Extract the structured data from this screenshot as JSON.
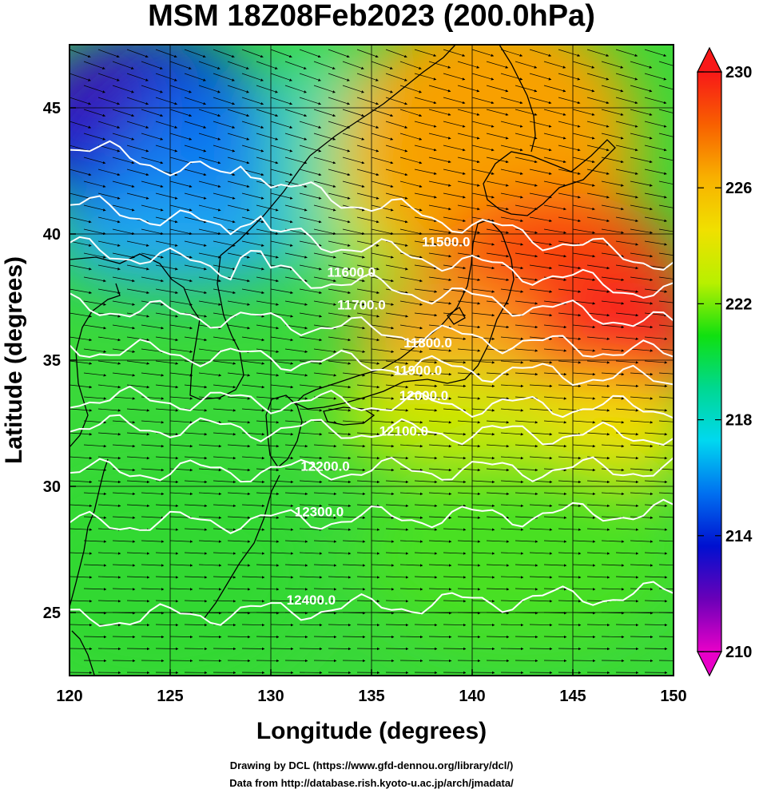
{
  "title": "MSM 18Z08Feb2023 (200.0hPa)",
  "xlabel": "Longitude (degrees)",
  "ylabel": "Latitude  (degrees)",
  "credit_line1": "Drawing by DCL (https://www.gfd-dennou.org/library/dcl/)",
  "credit_line2": "Data from http://database.rish.kyoto-u.ac.jp/arch/jmadata/",
  "colorbar": {
    "min": 210,
    "max": 230,
    "ticks": [
      "230",
      "226",
      "222",
      "218",
      "214",
      "210"
    ],
    "tick_values": [
      230,
      226,
      222,
      218,
      214,
      210
    ],
    "colors": [
      "#e800c8",
      "#6a00b8",
      "#0010d0",
      "#0070f0",
      "#00d8f0",
      "#00d890",
      "#10e010",
      "#b8f000",
      "#f0e000",
      "#f8b000",
      "#f86000",
      "#f81818"
    ]
  },
  "chart_data": {
    "type": "heatmap",
    "variable": "temperature shading, geopotential height contours, wind vectors",
    "xlim": [
      120,
      150
    ],
    "ylim": [
      22.5,
      47.5
    ],
    "xticks": [
      "120",
      "125",
      "130",
      "135",
      "140",
      "145",
      "150"
    ],
    "xtick_values": [
      120,
      125,
      130,
      135,
      140,
      145,
      150
    ],
    "yticks": [
      "45",
      "40",
      "35",
      "30",
      "25"
    ],
    "ytick_values": [
      45,
      40,
      35,
      30,
      25
    ],
    "grid": true,
    "contours": [
      {
        "label": "11500.0",
        "label_lon": 138.7,
        "label_lat": 39.7
      },
      {
        "label": "11600.0",
        "label_lon": 134.0,
        "label_lat": 38.5
      },
      {
        "label": "11700.0",
        "label_lon": 134.5,
        "label_lat": 37.2
      },
      {
        "label": "11800.0",
        "label_lon": 137.8,
        "label_lat": 35.7
      },
      {
        "label": "11900.0",
        "label_lon": 137.3,
        "label_lat": 34.6
      },
      {
        "label": "12000.0",
        "label_lon": 137.6,
        "label_lat": 33.6
      },
      {
        "label": "12100.0",
        "label_lon": 136.6,
        "label_lat": 32.2
      },
      {
        "label": "12200.0",
        "label_lon": 132.7,
        "label_lat": 30.8
      },
      {
        "label": "12300.0",
        "label_lon": 132.4,
        "label_lat": 29.0
      },
      {
        "label": "12400.0",
        "label_lon": 132.0,
        "label_lat": 25.5
      }
    ],
    "contour_lats_at_120": [
      43.5,
      41.2,
      39.5,
      37.2,
      35.5,
      33.5,
      32.4,
      30.6,
      28.5,
      24.7
    ],
    "contour_lats_at_150": [
      38.8,
      37.6,
      36.4,
      35.2,
      34.2,
      33.1,
      32.0,
      30.7,
      29.0,
      25.8
    ]
  }
}
